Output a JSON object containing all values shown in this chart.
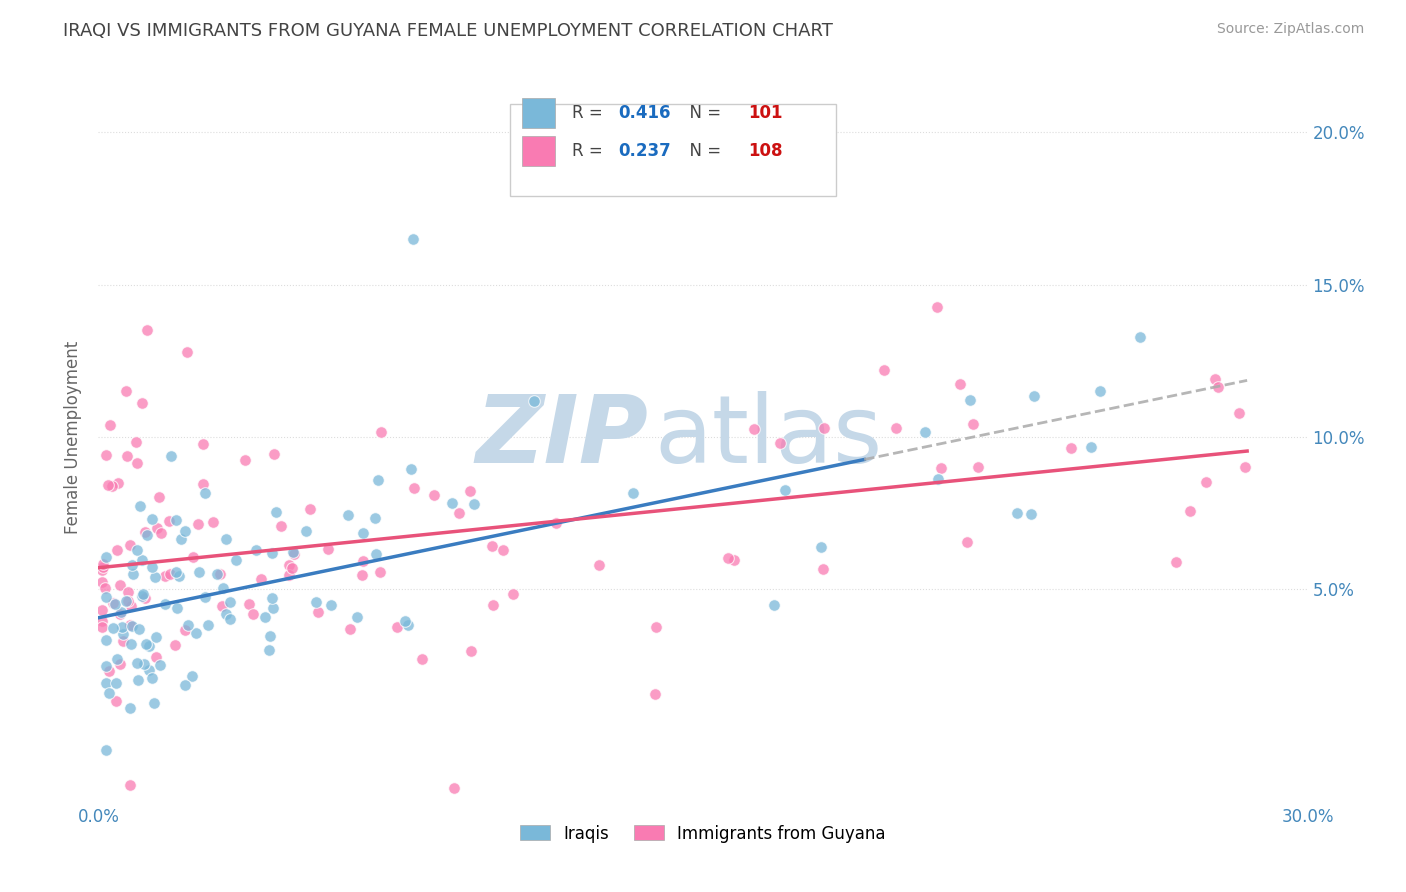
{
  "title": "IRAQI VS IMMIGRANTS FROM GUYANA FEMALE UNEMPLOYMENT CORRELATION CHART",
  "source": "Source: ZipAtlas.com",
  "ylabel": "Female Unemployment",
  "xlim": [
    0.0,
    0.3
  ],
  "ylim": [
    -0.02,
    0.22
  ],
  "xtick_positions": [
    0.0,
    0.05,
    0.1,
    0.15,
    0.2,
    0.25,
    0.3
  ],
  "xtick_labels": [
    "0.0%",
    "",
    "",
    "",
    "",
    "",
    "30.0%"
  ],
  "ytick_positions": [
    0.05,
    0.1,
    0.15,
    0.2
  ],
  "ytick_labels": [
    "5.0%",
    "10.0%",
    "15.0%",
    "20.0%"
  ],
  "iraqis_color": "#7ab8d9",
  "guyana_color": "#f97bb2",
  "iraqis_R": 0.416,
  "iraqis_N": 101,
  "guyana_R": 0.237,
  "guyana_N": 108,
  "legend_R_color": "#1a6bbf",
  "legend_N_color": "#cc1111",
  "watermark_zip": "ZIP",
  "watermark_atlas": "atlas",
  "watermark_color": "#c5d8e8",
  "iraqis_line_color": "#3a7cc0",
  "iraqis_dash_color": "#aaaaaa",
  "guyana_line_color": "#e8527a",
  "background_color": "#ffffff",
  "grid_color": "#dddddd",
  "axis_label_color": "#4488bb",
  "title_color": "#444444",
  "ylabel_color": "#666666"
}
